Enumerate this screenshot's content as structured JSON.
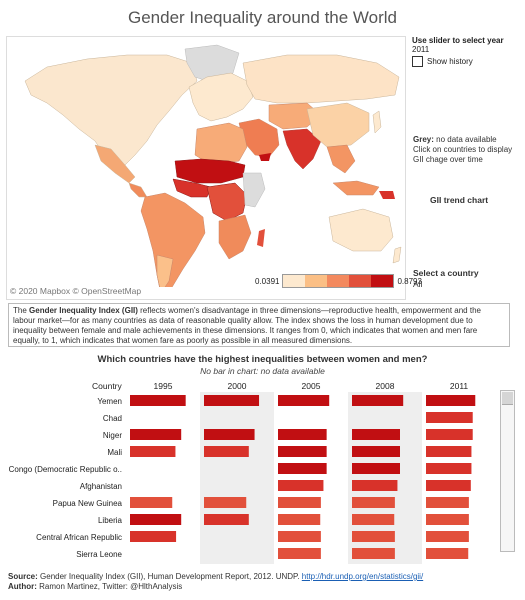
{
  "title": "Gender Inequality around the World",
  "map": {
    "credit": "© 2020 Mapbox © OpenStreetMap",
    "legend_min": "0.0391",
    "legend_max": "0.8793",
    "legend_colors": [
      "#fde9cf",
      "#fbbf85",
      "#f3895e",
      "#e2503b",
      "#c10f12"
    ]
  },
  "panel": {
    "slider_label": "Use slider to select year",
    "year": "2011",
    "show_history": "Show history",
    "grey_label": "Grey:",
    "grey_text": " no data available",
    "click_note": "Click on countries to display GII chage over time",
    "trend_title": "GII trend chart",
    "select_label": "Select a country",
    "select_value": "All"
  },
  "description": {
    "lead": "The ",
    "bold": "Gender Inequality Index (GII)",
    "text": " reflects women's disadvantage in three dimensions—reproductive health, empowerment and the labour market—for as many countries as data of reasonable quality allow. The index shows the loss in human development due to inequality between female and male achievements in these dimensions. It ranges from 0, which indicates that women and men fare equally, to 1, which indicates that women fare as poorly as possible in all measured dimensions."
  },
  "chart_title": "Which countries have the highest inequalities between women and men?",
  "chart_subtitle": "No bar in chart: no data available",
  "chart_data": {
    "type": "bar",
    "country_header": "Country",
    "years": [
      "1995",
      "2000",
      "2005",
      "2008",
      "2011"
    ],
    "xticks": [
      "0.0",
      "0.5",
      "1.0"
    ],
    "xlim": [
      0,
      1
    ],
    "categories": [
      "Yemen",
      "Chad",
      "Niger",
      "Mali",
      "Congo (Democratic Republic o..",
      "Afghanistan",
      "Papua New Guinea",
      "Liberia",
      "Central African Republic",
      "Sierra Leone"
    ],
    "series": [
      {
        "name": "1995",
        "values": [
          0.87,
          null,
          0.8,
          0.71,
          null,
          null,
          0.66,
          0.8,
          0.72,
          null
        ]
      },
      {
        "name": "2000",
        "values": [
          0.86,
          null,
          0.79,
          0.7,
          null,
          null,
          0.66,
          0.7,
          null,
          null
        ]
      },
      {
        "name": "2005",
        "values": [
          0.8,
          null,
          0.76,
          0.76,
          0.76,
          0.71,
          0.67,
          0.66,
          0.67,
          0.67
        ]
      },
      {
        "name": "2008",
        "values": [
          0.8,
          null,
          0.75,
          0.75,
          0.75,
          0.71,
          0.67,
          0.66,
          0.67,
          0.67
        ]
      },
      {
        "name": "2011",
        "values": [
          0.77,
          0.73,
          0.73,
          0.71,
          0.71,
          0.7,
          0.67,
          0.67,
          0.67,
          0.66
        ]
      }
    ]
  },
  "footer": {
    "source_label": "Source:",
    "source_text": " Gender Inequality Index (GII), Human Development Report, 2012. UNDP. ",
    "source_link": "http://hdr.undp.org/en/statistics/gii/",
    "author_label": "Author:",
    "author_text": " Ramon Martinez, Twitter: @HlthAnalysis"
  }
}
